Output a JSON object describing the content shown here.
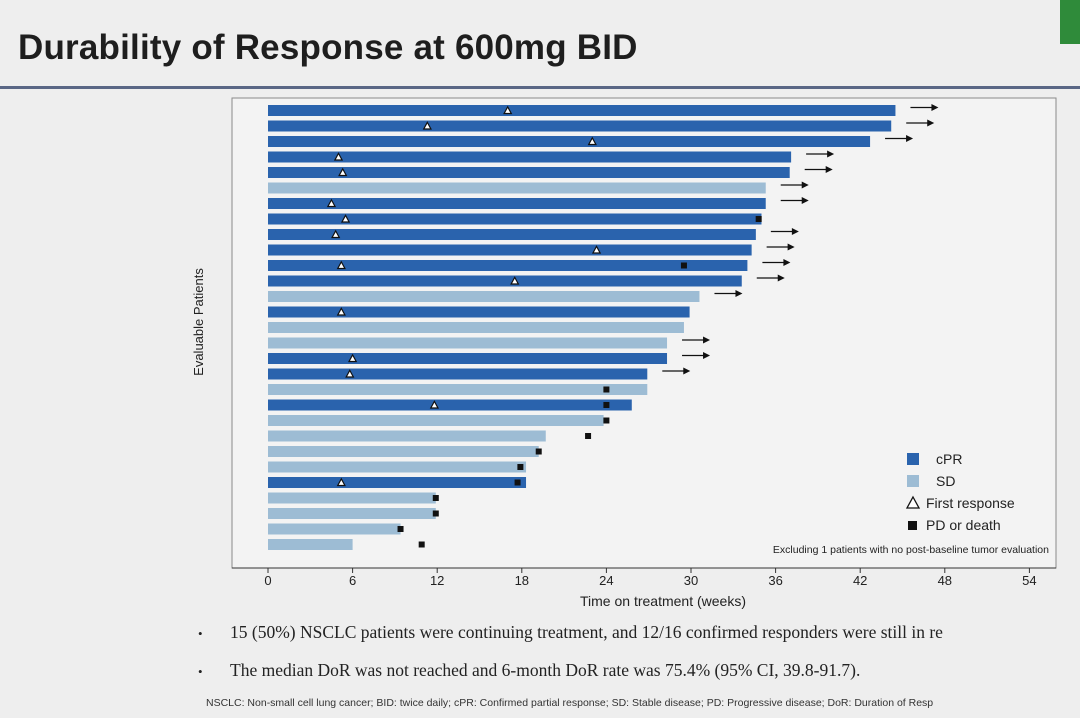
{
  "slide": {
    "title": "Durability of Response at 600mg BID",
    "bullets": [
      "15 (50%) NSCLC patients were continuing treatment, and 12/16 confirmed responders were still in re",
      "The median DoR was not reached and 6-month DoR rate was 75.4% (95% CI, 39.8-91.7)."
    ],
    "footnote": "NSCLC: Non-small cell lung cancer; BID: twice daily; cPR: Confirmed partial response; SD: Stable disease; PD: Progressive disease; DoR: Duration of Resp"
  },
  "colors": {
    "cPR": "#2a63ad",
    "SD": "#9dbcd4",
    "marker": "#111111",
    "background": "#eeeeee",
    "plot_background": "#f3f3f3"
  },
  "chart_data": {
    "type": "bar",
    "orientation": "horizontal",
    "title": "",
    "xlabel": "Time on treatment (weeks)",
    "ylabel": "Evaluable Patients",
    "xlim": [
      0,
      54
    ],
    "xticks": [
      0,
      6,
      12,
      18,
      24,
      30,
      36,
      42,
      48,
      54
    ],
    "grid": false,
    "legend_position": "bottom-right",
    "legend": [
      {
        "key": "cPR",
        "label": "cPR",
        "symbol": "square"
      },
      {
        "key": "SD",
        "label": "SD",
        "symbol": "square"
      },
      {
        "key": "first_response",
        "label": "First response",
        "symbol": "open-triangle"
      },
      {
        "key": "pd_death",
        "label": "PD or death",
        "symbol": "filled-square"
      }
    ],
    "annotation": "Excluding 1 patients with no post-baseline tumor evaluation",
    "patients": [
      {
        "duration": 44.5,
        "response": "cPR",
        "first_response": 17.0,
        "pd_death": null,
        "ongoing": true
      },
      {
        "duration": 44.2,
        "response": "cPR",
        "first_response": 11.3,
        "pd_death": null,
        "ongoing": true
      },
      {
        "duration": 42.7,
        "response": "cPR",
        "first_response": 23.0,
        "pd_death": null,
        "ongoing": true
      },
      {
        "duration": 37.1,
        "response": "cPR",
        "first_response": 5.0,
        "pd_death": null,
        "ongoing": true
      },
      {
        "duration": 37.0,
        "response": "cPR",
        "first_response": 5.3,
        "pd_death": null,
        "ongoing": true
      },
      {
        "duration": 35.3,
        "response": "SD",
        "first_response": null,
        "pd_death": null,
        "ongoing": true
      },
      {
        "duration": 35.3,
        "response": "cPR",
        "first_response": 4.5,
        "pd_death": null,
        "ongoing": true
      },
      {
        "duration": 35.0,
        "response": "cPR",
        "first_response": 5.5,
        "pd_death": 34.8,
        "ongoing": false
      },
      {
        "duration": 34.6,
        "response": "cPR",
        "first_response": 4.8,
        "pd_death": null,
        "ongoing": true
      },
      {
        "duration": 34.3,
        "response": "cPR",
        "first_response": 23.3,
        "pd_death": null,
        "ongoing": true
      },
      {
        "duration": 34.0,
        "response": "cPR",
        "first_response": 5.2,
        "pd_death": 29.5,
        "ongoing": true
      },
      {
        "duration": 33.6,
        "response": "cPR",
        "first_response": 17.5,
        "pd_death": null,
        "ongoing": true
      },
      {
        "duration": 30.6,
        "response": "SD",
        "first_response": null,
        "pd_death": null,
        "ongoing": true
      },
      {
        "duration": 29.9,
        "response": "cPR",
        "first_response": 5.2,
        "pd_death": null,
        "ongoing": false
      },
      {
        "duration": 29.5,
        "response": "SD",
        "first_response": null,
        "pd_death": null,
        "ongoing": false
      },
      {
        "duration": 28.3,
        "response": "SD",
        "first_response": null,
        "pd_death": null,
        "ongoing": true
      },
      {
        "duration": 28.3,
        "response": "cPR",
        "first_response": 6.0,
        "pd_death": null,
        "ongoing": true
      },
      {
        "duration": 26.9,
        "response": "cPR",
        "first_response": 5.8,
        "pd_death": null,
        "ongoing": true
      },
      {
        "duration": 26.9,
        "response": "SD",
        "first_response": null,
        "pd_death": 24.0,
        "ongoing": false
      },
      {
        "duration": 25.8,
        "response": "cPR",
        "first_response": 11.8,
        "pd_death": 24.0,
        "ongoing": false
      },
      {
        "duration": 23.8,
        "response": "SD",
        "first_response": null,
        "pd_death": 24.0,
        "ongoing": false
      },
      {
        "duration": 19.7,
        "response": "SD",
        "first_response": null,
        "pd_death": 22.7,
        "ongoing": false
      },
      {
        "duration": 19.2,
        "response": "SD",
        "first_response": null,
        "pd_death": 19.2,
        "ongoing": false
      },
      {
        "duration": 18.3,
        "response": "SD",
        "first_response": null,
        "pd_death": 17.9,
        "ongoing": false
      },
      {
        "duration": 18.3,
        "response": "cPR",
        "first_response": 5.2,
        "pd_death": 17.7,
        "ongoing": false
      },
      {
        "duration": 11.9,
        "response": "SD",
        "first_response": null,
        "pd_death": 11.9,
        "ongoing": false
      },
      {
        "duration": 11.9,
        "response": "SD",
        "first_response": null,
        "pd_death": 11.9,
        "ongoing": false
      },
      {
        "duration": 9.4,
        "response": "SD",
        "first_response": null,
        "pd_death": 9.4,
        "ongoing": false
      },
      {
        "duration": 6.0,
        "response": "SD",
        "first_response": null,
        "pd_death": 10.9,
        "ongoing": false
      }
    ]
  }
}
